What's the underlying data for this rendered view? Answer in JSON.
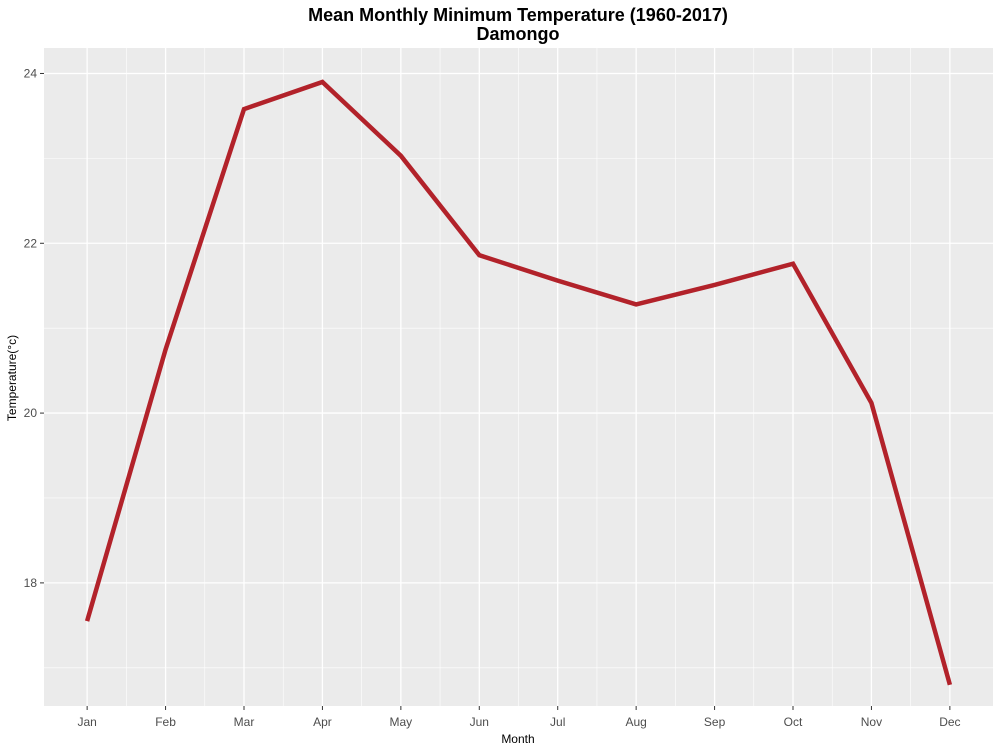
{
  "chart_data": {
    "type": "line",
    "title": "Mean Monthly Minimum Temperature (1960-2017)",
    "subtitle": "Damongo",
    "xlabel": "Month",
    "ylabel": "Temperature(°c)",
    "categories": [
      "Jan",
      "Feb",
      "Mar",
      "Apr",
      "May",
      "Jun",
      "Jul",
      "Aug",
      "Sep",
      "Oct",
      "Nov",
      "Dec"
    ],
    "series": [
      {
        "values": [
          17.55,
          20.75,
          23.58,
          23.9,
          23.03,
          21.86,
          21.56,
          21.28,
          21.51,
          21.76,
          20.12,
          16.8
        ],
        "color": "#b2222a"
      }
    ],
    "yticks": [
      18,
      20,
      22,
      24
    ],
    "ylim": [
      16.55,
      24.3
    ],
    "grid": true,
    "legend": "none",
    "panel_background": "#ebebeb",
    "grid_color": "#ffffff"
  }
}
